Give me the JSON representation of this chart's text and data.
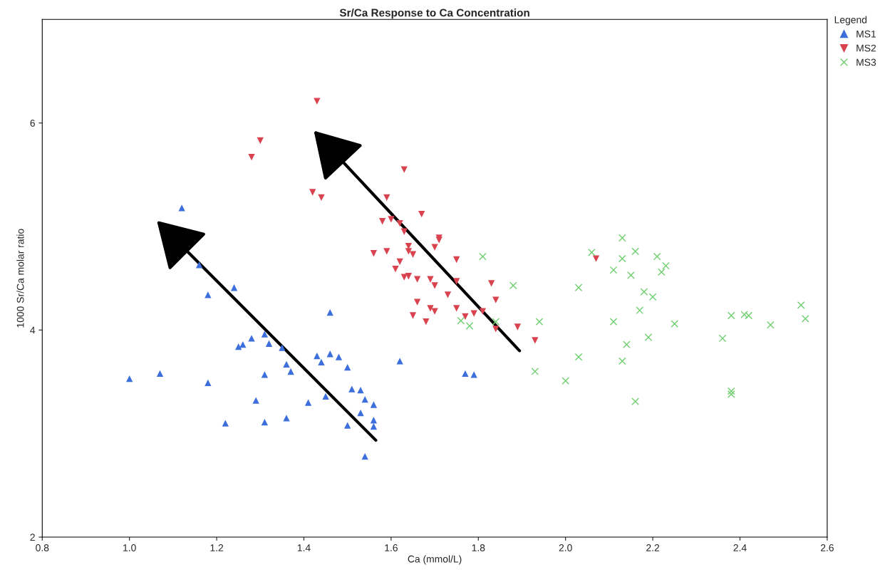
{
  "chart_data": {
    "type": "scatter",
    "title": "Sr/Ca Response to Ca Concentration",
    "xlabel": "Ca (mmol/L)",
    "ylabel": "1000 Sr/Ca molar ratio",
    "legend_title": "Legend",
    "legend": "top right",
    "grid": false,
    "xlim": [
      0.8,
      2.6
    ],
    "ylim": [
      2,
      7
    ],
    "xticks": [
      0.8,
      {
        "value": 1,
        "label": "1.0"
      },
      1.2,
      1.4,
      1.6,
      1.8,
      {
        "value": 2,
        "label": "2.0"
      },
      2.2,
      2.4,
      2.6
    ],
    "yticks": [
      2,
      4,
      6
    ],
    "series": [
      {
        "name": "MS1",
        "color": "#3d6fdc",
        "marker": "triangle",
        "x": [
          1.12,
          1.16,
          1.24,
          1.18,
          1.46,
          1.31,
          1.28,
          1.26,
          1.25,
          1.32,
          1.35,
          1.43,
          1.46,
          1.48,
          1.44,
          1.5,
          1.62,
          1.36,
          1.37,
          1.31,
          1.07,
          1.0,
          1.18,
          1.51,
          1.53,
          1.54,
          1.56,
          1.45,
          1.41,
          1.29,
          1.53,
          1.56,
          1.56,
          1.5,
          1.36,
          1.31,
          1.22,
          1.54,
          1.77,
          1.79
        ],
        "values": [
          5.18,
          4.63,
          4.41,
          4.34,
          4.17,
          3.96,
          3.92,
          3.86,
          3.84,
          3.87,
          3.83,
          3.75,
          3.77,
          3.74,
          3.69,
          3.64,
          3.7,
          3.67,
          3.6,
          3.57,
          3.58,
          3.53,
          3.49,
          3.43,
          3.42,
          3.33,
          3.28,
          3.36,
          3.3,
          3.32,
          3.2,
          3.13,
          3.07,
          3.08,
          3.15,
          3.11,
          3.1,
          2.78,
          3.58,
          3.57
        ]
      },
      {
        "name": "MS2",
        "color": "#d9434f",
        "marker": "triangle-down",
        "x": [
          1.43,
          1.3,
          1.28,
          1.63,
          1.42,
          1.44,
          1.59,
          1.67,
          1.58,
          1.6,
          1.62,
          1.63,
          1.71,
          1.71,
          1.7,
          1.64,
          1.64,
          1.65,
          1.56,
          1.59,
          1.75,
          1.62,
          1.61,
          1.63,
          1.64,
          1.66,
          1.69,
          1.7,
          1.83,
          1.73,
          1.75,
          1.84,
          1.66,
          1.69,
          1.7,
          1.75,
          1.65,
          1.79,
          1.77,
          1.81,
          1.68,
          1.89,
          1.84,
          1.93,
          2.07
        ],
        "values": [
          6.21,
          5.83,
          5.67,
          5.55,
          5.33,
          5.28,
          5.28,
          5.12,
          5.05,
          5.07,
          5.03,
          4.95,
          4.89,
          4.87,
          4.8,
          4.81,
          4.76,
          4.73,
          4.74,
          4.76,
          4.68,
          4.66,
          4.59,
          4.51,
          4.52,
          4.49,
          4.49,
          4.43,
          4.45,
          4.34,
          4.47,
          4.29,
          4.27,
          4.21,
          4.18,
          4.21,
          4.14,
          4.16,
          4.13,
          4.18,
          4.08,
          4.03,
          4.01,
          3.9,
          4.69
        ]
      },
      {
        "name": "MS3",
        "color": "#6fcf6f",
        "marker": "cross",
        "x": [
          1.81,
          1.88,
          1.76,
          1.78,
          1.84,
          1.94,
          2.13,
          2.06,
          2.13,
          2.16,
          2.21,
          2.23,
          2.22,
          2.11,
          2.15,
          2.03,
          2.18,
          2.2,
          2.17,
          2.11,
          2.25,
          2.38,
          2.41,
          2.42,
          2.47,
          2.54,
          2.55,
          2.19,
          2.36,
          2.14,
          2.03,
          2.13,
          1.93,
          2.0,
          2.16,
          2.38,
          2.38
        ],
        "values": [
          4.71,
          4.43,
          4.09,
          4.04,
          4.08,
          4.08,
          4.89,
          4.75,
          4.69,
          4.76,
          4.71,
          4.62,
          4.56,
          4.58,
          4.53,
          4.41,
          4.37,
          4.32,
          4.19,
          4.08,
          4.06,
          4.14,
          4.15,
          4.14,
          4.05,
          4.24,
          4.11,
          3.93,
          3.92,
          3.86,
          3.74,
          3.7,
          3.6,
          3.51,
          3.31,
          3.41,
          3.38
        ]
      }
    ]
  }
}
